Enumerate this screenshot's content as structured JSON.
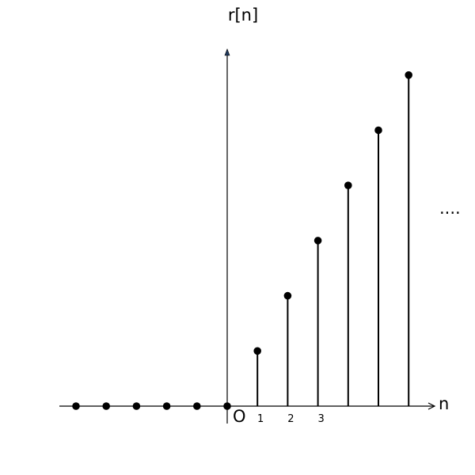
{
  "chart_data": {
    "type": "stem",
    "title": "",
    "ylabel": "r[n]",
    "xlabel": "n",
    "origin_label": "O",
    "continuation": "....",
    "x_tick_labels": [
      "1",
      "2",
      "3"
    ],
    "x": [
      -5,
      -4,
      -3,
      -2,
      -1,
      0,
      1,
      2,
      3,
      4,
      5,
      6
    ],
    "y": [
      0,
      0,
      0,
      0,
      0,
      0,
      1,
      2,
      3,
      4,
      5,
      6
    ],
    "xlim": [
      -5.6,
      6.8
    ],
    "ylim": [
      -0.3,
      6.4
    ],
    "grid": false,
    "colors": {
      "stem": "#000000",
      "axis": "#000000",
      "arrow_tip": "#1f3a5f"
    }
  }
}
